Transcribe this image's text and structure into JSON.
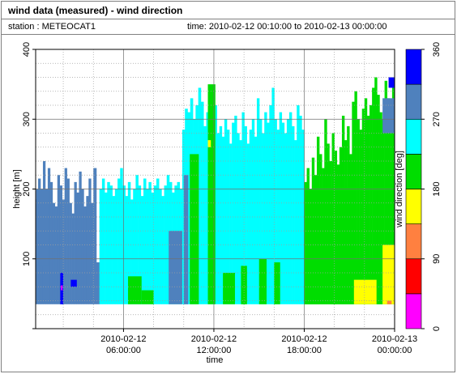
{
  "header": {
    "title": "wind data (measured) - wind direction",
    "station_label": "station : METEOCAT1",
    "time_label": "time: 2010-02-12 00:10:00 to 2010-02-13 00:00:00"
  },
  "chart_data": {
    "type": "heatmap",
    "title": "wind data (measured) - wind direction",
    "xlabel": "time",
    "ylabel": "height [m]",
    "x_range": [
      "2010-02-12 00:10:00",
      "2010-02-13 00:00:00"
    ],
    "ylim": [
      0,
      400
    ],
    "y_ticks": [
      0,
      100,
      200,
      300,
      400
    ],
    "x_ticks": [
      {
        "line1": "2010-02-12",
        "line2": "06:00:00",
        "hour": 6
      },
      {
        "line1": "2010-02-12",
        "line2": "12:00:00",
        "hour": 12
      },
      {
        "line1": "2010-02-12",
        "line2": "18:00:00",
        "hour": 18
      },
      {
        "line1": "2010-02-13",
        "line2": "00:00:00",
        "hour": 24
      }
    ],
    "x_domain_hours": [
      0.1667,
      24
    ],
    "grid": true,
    "colorbar": {
      "label": "wind direction [deg]",
      "ticks": [
        0,
        90,
        180,
        270,
        360
      ],
      "bands": [
        {
          "from": 0,
          "to": 45,
          "color": "#ff00ff"
        },
        {
          "from": 45,
          "to": 90,
          "color": "#ff0000"
        },
        {
          "from": 90,
          "to": 135,
          "color": "#ff8040"
        },
        {
          "from": 135,
          "to": 180,
          "color": "#ffff00"
        },
        {
          "from": 180,
          "to": 225,
          "color": "#00dd00"
        },
        {
          "from": 225,
          "to": 270,
          "color": "#00ffff"
        },
        {
          "from": 270,
          "to": 315,
          "color": "#4f81bd"
        },
        {
          "from": 315,
          "to": 360,
          "color": "#0000ff"
        }
      ]
    },
    "series": [
      {
        "hours": [
          0.17,
          4.0
        ],
        "base": 35,
        "tops": [
          185,
          215,
          200,
          240,
          190,
          230,
          210,
          180,
          175,
          220,
          205,
          185,
          230,
          215,
          180,
          165,
          210,
          195,
          225,
          200,
          175,
          190,
          215,
          180
        ],
        "direction": 292
      },
      {
        "hours": [
          4.0,
          4.4
        ],
        "base": 35,
        "tops": [
          230,
          95
        ],
        "direction": 292
      },
      {
        "hours": [
          4.4,
          9.9
        ],
        "base": 35,
        "tops": [
          200,
          215,
          195,
          210,
          205,
          190,
          200,
          215,
          230,
          205,
          190,
          210,
          185,
          200,
          220,
          205,
          190,
          215,
          200,
          210,
          195,
          205,
          215,
          200,
          190,
          205,
          220,
          210,
          195,
          205,
          210,
          200
        ],
        "direction": 248
      },
      {
        "hours": [
          9.9,
          12.2
        ],
        "base": 35,
        "tops": [
          285,
          315,
          310,
          330,
          300,
          320,
          345,
          325,
          290,
          310,
          335,
          305,
          320
        ],
        "direction": 248
      },
      {
        "hours": [
          12.2,
          18.0
        ],
        "base": 35,
        "tops": [
          280,
          290,
          275,
          300,
          285,
          265,
          295,
          305,
          280,
          270,
          310,
          290,
          265,
          285,
          300,
          275,
          330,
          300,
          280,
          310,
          295,
          320,
          345,
          300,
          285,
          310,
          295,
          280,
          300,
          310,
          290,
          270,
          320,
          305,
          285
        ],
        "direction": 248
      },
      {
        "hours": [
          18.0,
          24.0
        ],
        "base": 35,
        "tops": [
          210,
          230,
          195,
          245,
          220,
          275,
          250,
          230,
          300,
          265,
          240,
          280,
          255,
          235,
          260,
          305,
          270,
          290,
          250,
          325,
          340,
          300,
          285,
          315,
          330,
          305,
          320,
          345,
          360,
          335,
          310,
          300,
          355,
          330,
          320,
          360
        ],
        "direction": 202
      }
    ],
    "patches": [
      {
        "hours": [
          0.2,
          1.0
        ],
        "h": [
          90,
          200
        ],
        "direction": 292
      },
      {
        "hours": [
          1.8,
          2.0
        ],
        "h": [
          35,
          80
        ],
        "direction": 337
      },
      {
        "hours": [
          1.85,
          1.95
        ],
        "h": [
          55,
          62
        ],
        "direction": 20
      },
      {
        "hours": [
          2.5,
          2.9
        ],
        "h": [
          60,
          70
        ],
        "direction": 337
      },
      {
        "hours": [
          6.3,
          7.2
        ],
        "h": [
          35,
          75
        ],
        "direction": 202
      },
      {
        "hours": [
          7.2,
          8.0
        ],
        "h": [
          35,
          55
        ],
        "direction": 202
      },
      {
        "hours": [
          9.0,
          9.9
        ],
        "h": [
          35,
          140
        ],
        "direction": 292
      },
      {
        "hours": [
          10.0,
          10.3
        ],
        "h": [
          35,
          220
        ],
        "direction": 292
      },
      {
        "hours": [
          10.4,
          11.0
        ],
        "h": [
          35,
          250
        ],
        "direction": 202
      },
      {
        "hours": [
          11.6,
          12.1
        ],
        "h": [
          35,
          350
        ],
        "direction": 202
      },
      {
        "hours": [
          11.6,
          11.8
        ],
        "h": [
          260,
          270
        ],
        "direction": 157
      },
      {
        "hours": [
          12.6,
          13.4
        ],
        "h": [
          35,
          80
        ],
        "direction": 202
      },
      {
        "hours": [
          13.8,
          14.2
        ],
        "h": [
          35,
          90
        ],
        "direction": 202
      },
      {
        "hours": [
          15.0,
          15.5
        ],
        "h": [
          35,
          100
        ],
        "direction": 202
      },
      {
        "hours": [
          16.0,
          16.4
        ],
        "h": [
          35,
          95
        ],
        "direction": 202
      },
      {
        "hours": [
          18.0,
          21.0
        ],
        "h": [
          35,
          200
        ],
        "direction": 202
      },
      {
        "hours": [
          18.0,
          19.0
        ],
        "h": [
          35,
          170
        ],
        "direction": 202
      },
      {
        "hours": [
          21.0,
          23.2
        ],
        "h": [
          35,
          100
        ],
        "direction": 202
      },
      {
        "hours": [
          21.3,
          22.8
        ],
        "h": [
          35,
          70
        ],
        "direction": 157
      },
      {
        "hours": [
          23.2,
          24.0
        ],
        "h": [
          35,
          120
        ],
        "direction": 157
      },
      {
        "hours": [
          23.5,
          23.8
        ],
        "h": [
          35,
          40
        ],
        "direction": 112
      },
      {
        "hours": [
          23.2,
          24.0
        ],
        "h": [
          280,
          330
        ],
        "direction": 292
      },
      {
        "hours": [
          23.6,
          24.0
        ],
        "h": [
          345,
          360
        ],
        "direction": 337
      }
    ]
  }
}
